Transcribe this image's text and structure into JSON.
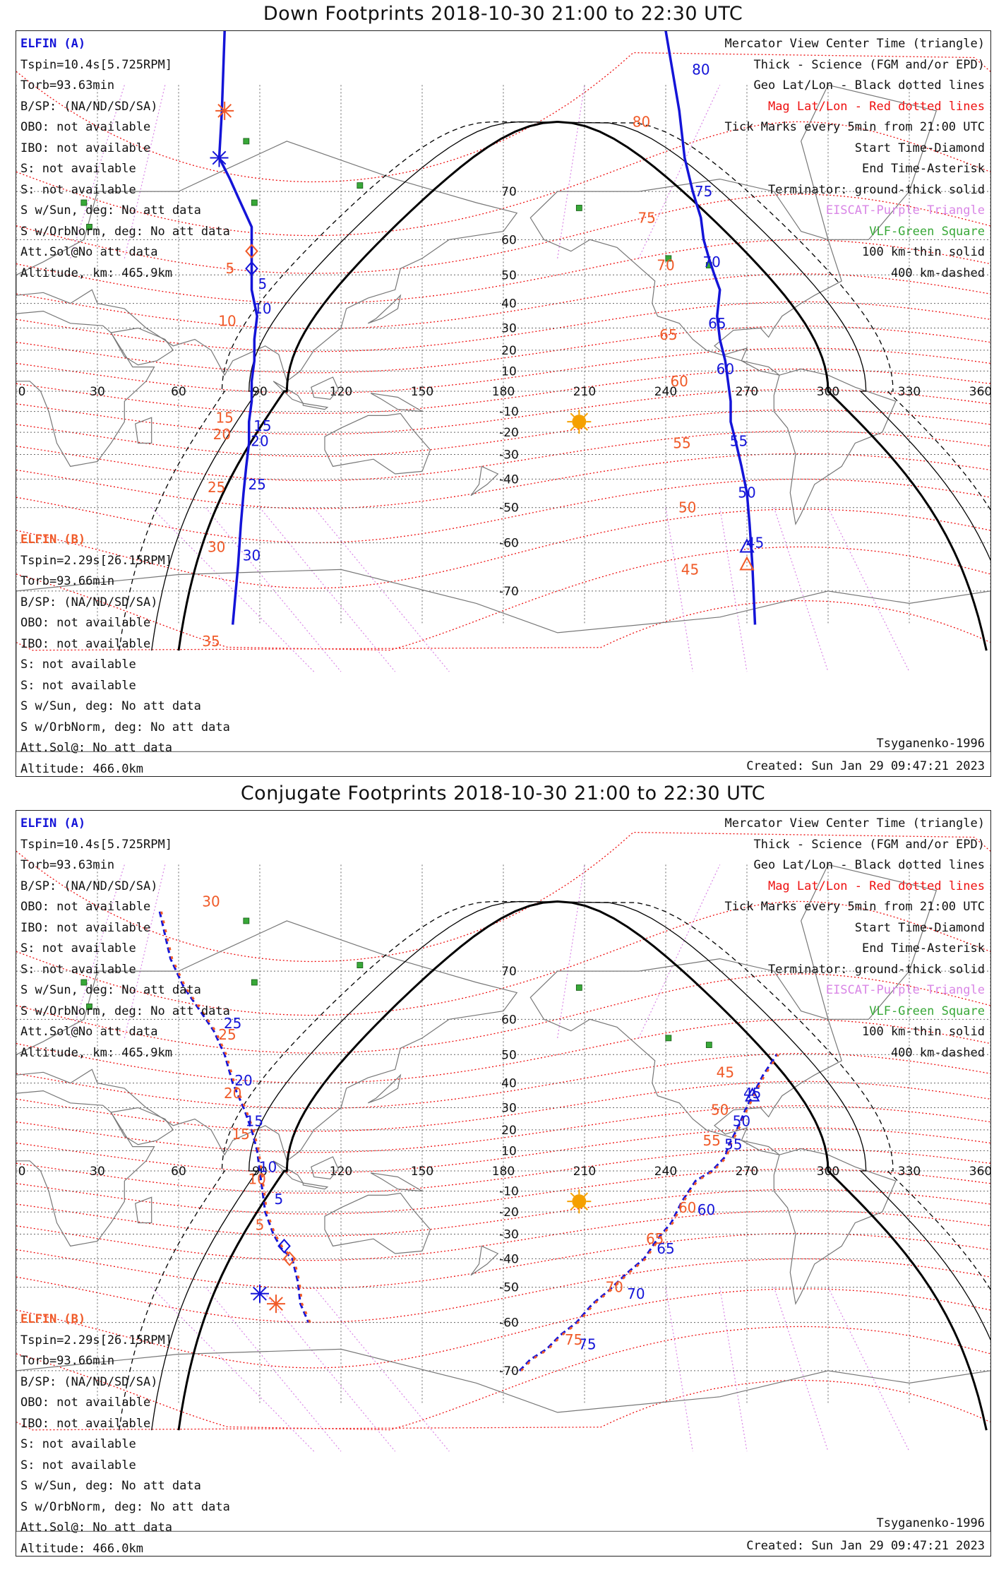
{
  "colors": {
    "elfin_a": "#1414d8",
    "elfin_b": "#f05a28",
    "mag_grid": "#ee1010",
    "geo_grid": "#555555",
    "eiscat": "#d986e6",
    "vlf": "#38a838",
    "sun": "#f5a000",
    "terminator": "#000000"
  },
  "panels": [
    {
      "title": "Down Footprints 2018-10-30 21:00 to 22:30 UTC",
      "elfin_a": {
        "name": "ELFIN (A)",
        "lines": [
          "Tspin=10.4s[5.725RPM]",
          "Torb=93.63min",
          "B/SP: (NA/ND/SD/SA)",
          "OBO: not available",
          "IBO: not available",
          "S: not available",
          "S: not available",
          "S w/Sun, deg: No att data",
          "S w/OrbNorm, deg: No att data",
          "Att.Sol@No att data",
          "Altitude, km: 465.9km"
        ]
      },
      "elfin_b": {
        "name": "ELFIN (B)",
        "lines": [
          "Tspin=2.29s[26.15RPM]",
          "Torb=93.66min",
          "B/SP: (NA/ND/SD/SA)",
          "OBO: not available",
          "IBO: not available",
          "S: not available",
          "S: not available",
          "S w/Sun, deg: No att data",
          "S w/OrbNorm, deg: No att data",
          "Att.Sol@: No att data",
          "Altitude: 466.0km"
        ]
      },
      "legend": {
        "view": "Mercator View Center Time (triangle)",
        "thick": "Thick - Science (FGM and/or EPD)",
        "geo": "Geo Lat/Lon - Black dotted lines",
        "mag": "Mag Lat/Lon - Red dotted lines",
        "ticks": "Tick Marks every 5min from 21:00 UTC",
        "start": "Start Time-Diamond",
        "end": "End Time-Asterisk",
        "terminator": "Terminator: ground-thick solid",
        "eiscat": "EISCAT-Purple Triangle",
        "vlf": "VLF-Green Square",
        "km100": "100 km-thin solid",
        "km400": "400 km-dashed"
      },
      "credit": "Tsyganenko-1996",
      "created": "Created: Sun Jan 29 09:47:21 2023",
      "map": {
        "type": "down",
        "lon_ticks": [
          "0",
          "30",
          "60",
          "90",
          "120",
          "150",
          "180",
          "210",
          "240",
          "270",
          "300",
          "330",
          "360"
        ],
        "lat_ticks": [
          {
            "lat": 70,
            "label": "70"
          },
          {
            "lat": 60,
            "label": "60"
          },
          {
            "lat": 50,
            "label": "50"
          },
          {
            "lat": 40,
            "label": "40"
          },
          {
            "lat": 30,
            "label": "30"
          },
          {
            "lat": 20,
            "label": "20"
          },
          {
            "lat": 10,
            "label": "10"
          },
          {
            "lat": -10,
            "label": "-10"
          },
          {
            "lat": -20,
            "label": "-20"
          },
          {
            "lat": -30,
            "label": "-30"
          },
          {
            "lat": -40,
            "label": "-40"
          },
          {
            "lat": -50,
            "label": "-50"
          },
          {
            "lat": -60,
            "label": "-60"
          },
          {
            "lat": -70,
            "label": "-70"
          }
        ],
        "sun": {
          "lon": 208,
          "lat": -15
        },
        "vlf_sites": [
          [
            85,
            77
          ],
          [
            25,
            68
          ],
          [
            27,
            63
          ],
          [
            127,
            71
          ],
          [
            88,
            68
          ],
          [
            208,
            67
          ],
          [
            256,
            53
          ],
          [
            241,
            55
          ]
        ],
        "track_a": [
          [
            77,
            85
          ],
          [
            76,
            80
          ],
          [
            75,
            75
          ],
          [
            79,
            72
          ],
          [
            82,
            69
          ],
          [
            87,
            63
          ],
          [
            87,
            56
          ],
          [
            87,
            45
          ],
          [
            89,
            35
          ],
          [
            88,
            25
          ],
          [
            88,
            15
          ],
          [
            87,
            5
          ],
          [
            87,
            -5
          ],
          [
            86,
            -15
          ],
          [
            86,
            -25
          ],
          [
            85,
            -35
          ],
          [
            84,
            -45
          ],
          [
            83,
            -55
          ],
          [
            82,
            -65
          ],
          [
            80,
            -75
          ]
        ],
        "track_b": [
          [
            80,
            -75
          ],
          [
            82,
            -65
          ],
          [
            83,
            -55
          ]
        ],
        "track_a_east": [
          [
            240,
            85
          ],
          [
            245,
            80
          ],
          [
            247,
            75
          ],
          [
            250,
            70
          ],
          [
            253,
            65
          ],
          [
            254,
            60
          ],
          [
            256,
            55
          ],
          [
            258,
            50
          ],
          [
            260,
            45
          ],
          [
            259,
            35
          ],
          [
            260,
            25
          ],
          [
            262,
            15
          ],
          [
            263,
            5
          ],
          [
            264,
            -5
          ],
          [
            264,
            -15
          ],
          [
            266,
            -25
          ],
          [
            268,
            -35
          ],
          [
            270,
            -45
          ],
          [
            271,
            -55
          ],
          [
            272,
            -65
          ],
          [
            273,
            -75
          ]
        ],
        "ticks_a": [
          {
            "lon": 91,
            "lat": 47,
            "label": "5"
          },
          {
            "lon": 91,
            "lat": 38,
            "label": "10"
          },
          {
            "lon": 91,
            "lat": -17,
            "label": "15"
          },
          {
            "lon": 90,
            "lat": -24,
            "label": "20"
          },
          {
            "lon": 89,
            "lat": -42,
            "label": "25"
          },
          {
            "lon": 87,
            "lat": -63,
            "label": "30"
          },
          {
            "lon": 253,
            "lat": 83,
            "label": "80"
          },
          {
            "lon": 254,
            "lat": 70,
            "label": "75"
          },
          {
            "lon": 257,
            "lat": 54,
            "label": "70"
          },
          {
            "lon": 259,
            "lat": 32,
            "label": "65"
          },
          {
            "lon": 262,
            "lat": 11,
            "label": "60"
          },
          {
            "lon": 267,
            "lat": -24,
            "label": "55"
          },
          {
            "lon": 270,
            "lat": -45,
            "label": "50"
          },
          {
            "lon": 273,
            "lat": -60,
            "label": "45"
          }
        ],
        "ticks_b": [
          {
            "lon": 79,
            "lat": 52,
            "label": "5"
          },
          {
            "lon": 78,
            "lat": 33,
            "label": "10"
          },
          {
            "lon": 77,
            "lat": -13,
            "label": "15"
          },
          {
            "lon": 76,
            "lat": -21,
            "label": "20"
          },
          {
            "lon": 74,
            "lat": -43,
            "label": "25"
          },
          {
            "lon": 74,
            "lat": -61,
            "label": "30"
          },
          {
            "lon": 72,
            "lat": -77,
            "label": "35"
          },
          {
            "lon": 231,
            "lat": 79,
            "label": "80"
          },
          {
            "lon": 233,
            "lat": 65,
            "label": "75"
          },
          {
            "lon": 240,
            "lat": 53,
            "label": "70"
          },
          {
            "lon": 241,
            "lat": 27,
            "label": "65"
          },
          {
            "lon": 245,
            "lat": 5,
            "label": "60"
          },
          {
            "lon": 246,
            "lat": -25,
            "label": "55"
          },
          {
            "lon": 248,
            "lat": -50,
            "label": "50"
          },
          {
            "lon": 249,
            "lat": -66,
            "label": "45"
          }
        ]
      }
    },
    {
      "title": "Conjugate Footprints 2018-10-30 21:00 to 22:30 UTC",
      "elfin_a": {
        "name": "ELFIN (A)",
        "lines": [
          "Tspin=10.4s[5.725RPM]",
          "Torb=93.63min",
          "B/SP: (NA/ND/SD/SA)",
          "OBO: not available",
          "IBO: not available",
          "S: not available",
          "S: not available",
          "S w/Sun, deg: No att data",
          "S w/OrbNorm, deg: No att data",
          "Att.Sol@No att data",
          "Altitude, km: 465.9km"
        ]
      },
      "elfin_b": {
        "name": "ELFIN (B)",
        "lines": [
          "Tspin=2.29s[26.15RPM]",
          "Torb=93.66min",
          "B/SP: (NA/ND/SD/SA)",
          "OBO: not available",
          "IBO: not available",
          "S: not available",
          "S: not available",
          "S w/Sun, deg: No att data",
          "S w/OrbNorm, deg: No att data",
          "Att.Sol@: No att data",
          "Altitude: 466.0km"
        ]
      },
      "legend": {
        "view": "Mercator View Center Time (triangle)",
        "thick": "Thick - Science (FGM and/or EPD)",
        "geo": "Geo Lat/Lon - Black dotted lines",
        "mag": "Mag Lat/Lon - Red dotted lines",
        "ticks": "Tick Marks every 5min from 21:00 UTC",
        "start": "Start Time-Diamond",
        "end": "End Time-Asterisk",
        "terminator": "Terminator: ground-thick solid",
        "eiscat": "EISCAT-Purple Triangle",
        "vlf": "VLF-Green Square",
        "km100": "100 km-thin solid",
        "km400": "400 km-dashed"
      },
      "credit": "Tsyganenko-1996",
      "created": "Created: Sun Jan 29 09:47:21 2023",
      "map": {
        "type": "conjugate",
        "lon_ticks": [
          "0",
          "30",
          "60",
          "90",
          "120",
          "150",
          "180",
          "210",
          "240",
          "270",
          "300",
          "330",
          "360"
        ],
        "lat_ticks": [
          {
            "lat": 70,
            "label": "70"
          },
          {
            "lat": 60,
            "label": "60"
          },
          {
            "lat": 50,
            "label": "50"
          },
          {
            "lat": 40,
            "label": "40"
          },
          {
            "lat": 30,
            "label": "30"
          },
          {
            "lat": 20,
            "label": "20"
          },
          {
            "lat": 10,
            "label": "10"
          },
          {
            "lat": -10,
            "label": "-10"
          },
          {
            "lat": -20,
            "label": "-20"
          },
          {
            "lat": -30,
            "label": "-30"
          },
          {
            "lat": -40,
            "label": "-40"
          },
          {
            "lat": -50,
            "label": "-50"
          },
          {
            "lat": -60,
            "label": "-60"
          },
          {
            "lat": -70,
            "label": "-70"
          }
        ],
        "sun": {
          "lon": 208,
          "lat": -15
        },
        "vlf_sites": [
          [
            85,
            77
          ],
          [
            25,
            68
          ],
          [
            27,
            63
          ],
          [
            127,
            71
          ],
          [
            88,
            68
          ],
          [
            208,
            67
          ],
          [
            256,
            53
          ],
          [
            241,
            55
          ]
        ],
        "track": [
          [
            53,
            78
          ],
          [
            57,
            72
          ],
          [
            62,
            67
          ],
          [
            68,
            62
          ],
          [
            73,
            57
          ],
          [
            77,
            50
          ],
          [
            80,
            40
          ],
          [
            84,
            30
          ],
          [
            87,
            20
          ],
          [
            89,
            10
          ],
          [
            90,
            0
          ],
          [
            91,
            -10
          ],
          [
            92,
            -20
          ],
          [
            95,
            -30
          ],
          [
            98,
            -36
          ],
          [
            102,
            -40
          ],
          [
            104,
            -48
          ],
          [
            105,
            -55
          ],
          [
            108,
            -60
          ]
        ],
        "track_east": [
          [
            186,
            -70
          ],
          [
            190,
            -68
          ],
          [
            196,
            -66
          ],
          [
            201,
            -63
          ],
          [
            207,
            -60
          ],
          [
            213,
            -55
          ],
          [
            219,
            -51
          ],
          [
            226,
            -45
          ],
          [
            232,
            -40
          ],
          [
            237,
            -32
          ],
          [
            242,
            -25
          ],
          [
            246,
            -15
          ],
          [
            251,
            -5
          ],
          [
            257,
            0
          ],
          [
            262,
            7
          ],
          [
            263,
            12
          ],
          [
            265,
            17
          ],
          [
            267,
            22
          ],
          [
            269,
            28
          ],
          [
            272,
            35
          ],
          [
            276,
            43
          ],
          [
            281,
            50
          ]
        ],
        "ticks_a": [
          {
            "lon": 80,
            "lat": 59,
            "label": "25"
          },
          {
            "lon": 84,
            "lat": 41,
            "label": "20"
          },
          {
            "lon": 88,
            "lat": 24,
            "label": "15"
          },
          {
            "lon": 93,
            "lat": 2,
            "label": "10"
          },
          {
            "lon": 97,
            "lat": -14,
            "label": "5"
          },
          {
            "lon": 272,
            "lat": 36,
            "label": "45"
          },
          {
            "lon": 268,
            "lat": 24,
            "label": "50"
          },
          {
            "lon": 265,
            "lat": 13,
            "label": "55"
          },
          {
            "lon": 255,
            "lat": -19,
            "label": "60"
          },
          {
            "lon": 240,
            "lat": -36,
            "label": "65"
          },
          {
            "lon": 229,
            "lat": -52,
            "label": "70"
          },
          {
            "lon": 211,
            "lat": -65,
            "label": "75"
          }
        ],
        "ticks_b": [
          {
            "lon": 72,
            "lat": 79,
            "label": "30"
          },
          {
            "lon": 78,
            "lat": 56,
            "label": "25"
          },
          {
            "lon": 80,
            "lat": 36,
            "label": "20"
          },
          {
            "lon": 83,
            "lat": 18,
            "label": "15"
          },
          {
            "lon": 89,
            "lat": -4,
            "label": "10"
          },
          {
            "lon": 90,
            "lat": -26,
            "label": "5"
          },
          {
            "lon": 262,
            "lat": 44,
            "label": "45"
          },
          {
            "lon": 260,
            "lat": 29,
            "label": "50"
          },
          {
            "lon": 257,
            "lat": 15,
            "label": "55"
          },
          {
            "lon": 248,
            "lat": -18,
            "label": "60"
          },
          {
            "lon": 236,
            "lat": -32,
            "label": "65"
          },
          {
            "lon": 221,
            "lat": -50,
            "label": "70"
          },
          {
            "lon": 206,
            "lat": -64,
            "label": "75"
          }
        ]
      }
    }
  ]
}
